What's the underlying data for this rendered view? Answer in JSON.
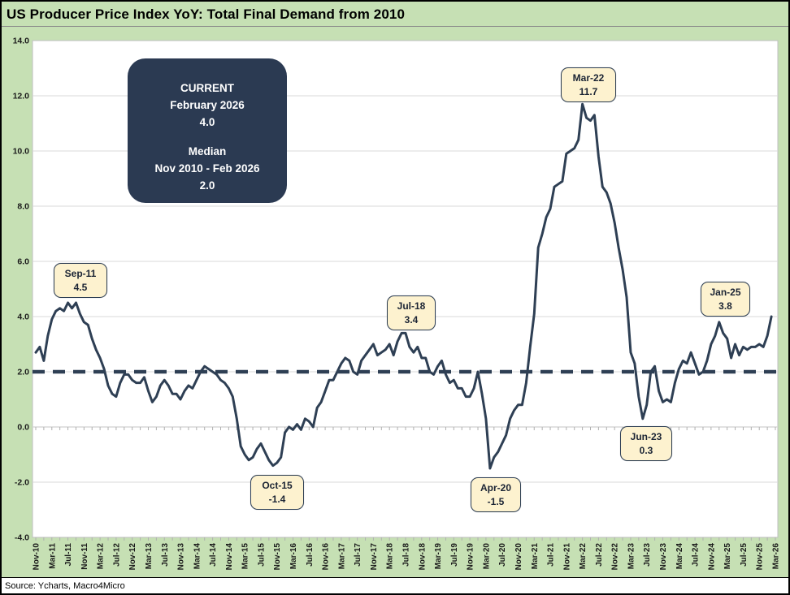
{
  "header": {
    "title": "US Producer Price Index YoY: Total Final Demand from 2010"
  },
  "stats": {
    "current_label": "CURRENT",
    "current_period": "February 2026",
    "current_value": "4.0",
    "median_label": "Median",
    "median_period": "Nov 2010 - Feb 2026",
    "median_value": "2.0"
  },
  "annotations": [
    {
      "label": "Sep-11",
      "value": "4.5"
    },
    {
      "label": "Oct-15",
      "value": "-1.4"
    },
    {
      "label": "Jul-18",
      "value": "3.4"
    },
    {
      "label": "Apr-20",
      "value": "-1.5"
    },
    {
      "label": "Mar-22",
      "value": "11.7"
    },
    {
      "label": "Jun-23",
      "value": "0.3"
    },
    {
      "label": "Jan-25",
      "value": "3.8"
    }
  ],
  "footer": {
    "source": "Source: Ycharts, Macro4Micro"
  },
  "colors": {
    "background_green": "#c6e0b4",
    "plot_background": "#ffffff",
    "line_navy": "#2e3f54",
    "info_box_navy": "#2b3a52",
    "annotation_fill": "#fdf2cf",
    "gridline_gray": "#d9d9d9"
  },
  "chart_data": {
    "type": "line",
    "title": "US Producer Price Index YoY: Total Final Demand from 2010",
    "xlabel": "",
    "ylabel": "",
    "ylim": [
      -4.0,
      14.0
    ],
    "ytick_step": 2.0,
    "ytick_labels": [
      "14.0",
      "12.0",
      "10.0",
      "8.0",
      "6.0",
      "4.0",
      "2.0",
      "0.0",
      "-2.0",
      "-4.0"
    ],
    "grid": "horizontal",
    "legend": "none",
    "median_reference_line": 2.0,
    "start_month": "Nov-2010",
    "end_month": "Feb-2026",
    "frequency": "monthly",
    "xtick_labels": [
      "Nov-10",
      "Mar-11",
      "Jul-11",
      "Nov-11",
      "Mar-12",
      "Jul-12",
      "Nov-12",
      "Mar-13",
      "Jul-13",
      "Nov-13",
      "Mar-14",
      "Jul-14",
      "Nov-14",
      "Mar-15",
      "Jul-15",
      "Nov-15",
      "Mar-16",
      "Jul-16",
      "Nov-16",
      "Mar-17",
      "Jul-17",
      "Nov-17",
      "Mar-18",
      "Jul-18",
      "Nov-18",
      "Mar-19",
      "Jul-19",
      "Nov-19",
      "Mar-20",
      "Jul-20",
      "Nov-20",
      "Mar-21",
      "Jul-21",
      "Nov-21",
      "Mar-22",
      "Jul-22",
      "Nov-22",
      "Mar-23",
      "Jul-23",
      "Nov-23",
      "Mar-24",
      "Jul-24",
      "Nov-24",
      "Mar-25",
      "Jul-25",
      "Nov-25",
      "Mar-26"
    ],
    "values": [
      2.7,
      2.9,
      2.4,
      3.3,
      3.9,
      4.2,
      4.3,
      4.2,
      4.5,
      4.3,
      4.5,
      4.1,
      3.8,
      3.7,
      3.2,
      2.8,
      2.5,
      2.1,
      1.5,
      1.2,
      1.1,
      1.6,
      1.9,
      1.9,
      1.7,
      1.6,
      1.6,
      1.8,
      1.3,
      0.9,
      1.1,
      1.5,
      1.7,
      1.5,
      1.2,
      1.2,
      1.0,
      1.3,
      1.5,
      1.4,
      1.7,
      2.0,
      2.2,
      2.1,
      2.0,
      1.9,
      1.7,
      1.6,
      1.4,
      1.1,
      0.3,
      -0.7,
      -1.0,
      -1.2,
      -1.1,
      -0.8,
      -0.6,
      -0.9,
      -1.2,
      -1.4,
      -1.3,
      -1.1,
      -0.2,
      0.0,
      -0.1,
      0.1,
      -0.1,
      0.3,
      0.2,
      0.0,
      0.7,
      0.9,
      1.3,
      1.7,
      1.7,
      2.0,
      2.3,
      2.5,
      2.4,
      2.0,
      1.9,
      2.4,
      2.6,
      2.8,
      3.0,
      2.6,
      2.7,
      2.8,
      3.0,
      2.6,
      3.1,
      3.4,
      3.4,
      2.9,
      2.7,
      2.9,
      2.5,
      2.5,
      2.0,
      1.9,
      2.2,
      2.4,
      1.9,
      1.6,
      1.7,
      1.4,
      1.4,
      1.1,
      1.1,
      1.4,
      2.0,
      1.2,
      0.3,
      -1.5,
      -1.1,
      -0.9,
      -0.6,
      -0.3,
      0.3,
      0.6,
      0.8,
      0.8,
      1.6,
      2.9,
      4.1,
      6.5,
      7.0,
      7.6,
      7.9,
      8.7,
      8.8,
      8.9,
      9.9,
      10.0,
      10.1,
      10.4,
      11.7,
      11.2,
      11.1,
      11.3,
      9.8,
      8.7,
      8.5,
      8.1,
      7.4,
      6.5,
      5.7,
      4.7,
      2.7,
      2.3,
      1.1,
      0.3,
      0.8,
      2.0,
      2.2,
      1.3,
      0.9,
      1.0,
      0.9,
      1.6,
      2.1,
      2.4,
      2.3,
      2.7,
      2.3,
      1.9,
      2.0,
      2.4,
      3.0,
      3.3,
      3.8,
      3.4,
      3.2,
      2.5,
      3.0,
      2.6,
      2.9,
      2.8,
      2.9,
      2.9,
      3.0,
      2.9,
      3.3,
      4.0
    ],
    "annotated_points": [
      {
        "month": "Sep-11",
        "value": 4.5
      },
      {
        "month": "Oct-15",
        "value": -1.4
      },
      {
        "month": "Jul-18",
        "value": 3.4
      },
      {
        "month": "Apr-20",
        "value": -1.5
      },
      {
        "month": "Mar-22",
        "value": 11.7
      },
      {
        "month": "Jun-23",
        "value": 0.3
      },
      {
        "month": "Jan-25",
        "value": 3.8
      }
    ]
  }
}
